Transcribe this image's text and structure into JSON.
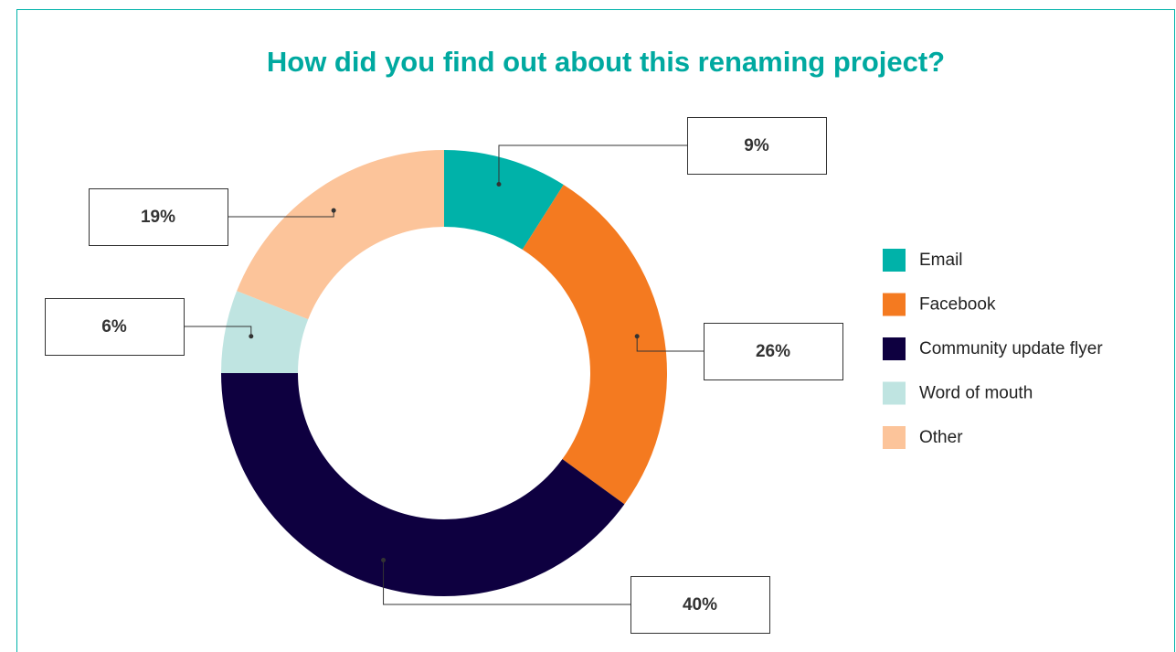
{
  "chart_data": {
    "type": "donut",
    "title": "How did you find out about this renaming project?",
    "categories": [
      "Email",
      "Facebook",
      "Community update flyer",
      "Word of mouth",
      "Other"
    ],
    "values": [
      9,
      26,
      40,
      6,
      19
    ],
    "value_labels": [
      "9%",
      "26%",
      "40%",
      "6%",
      "19%"
    ],
    "colors": [
      "#00b2a9",
      "#f47a20",
      "#0e0040",
      "#bfe4e1",
      "#fcc49a"
    ],
    "legend": "right"
  }
}
